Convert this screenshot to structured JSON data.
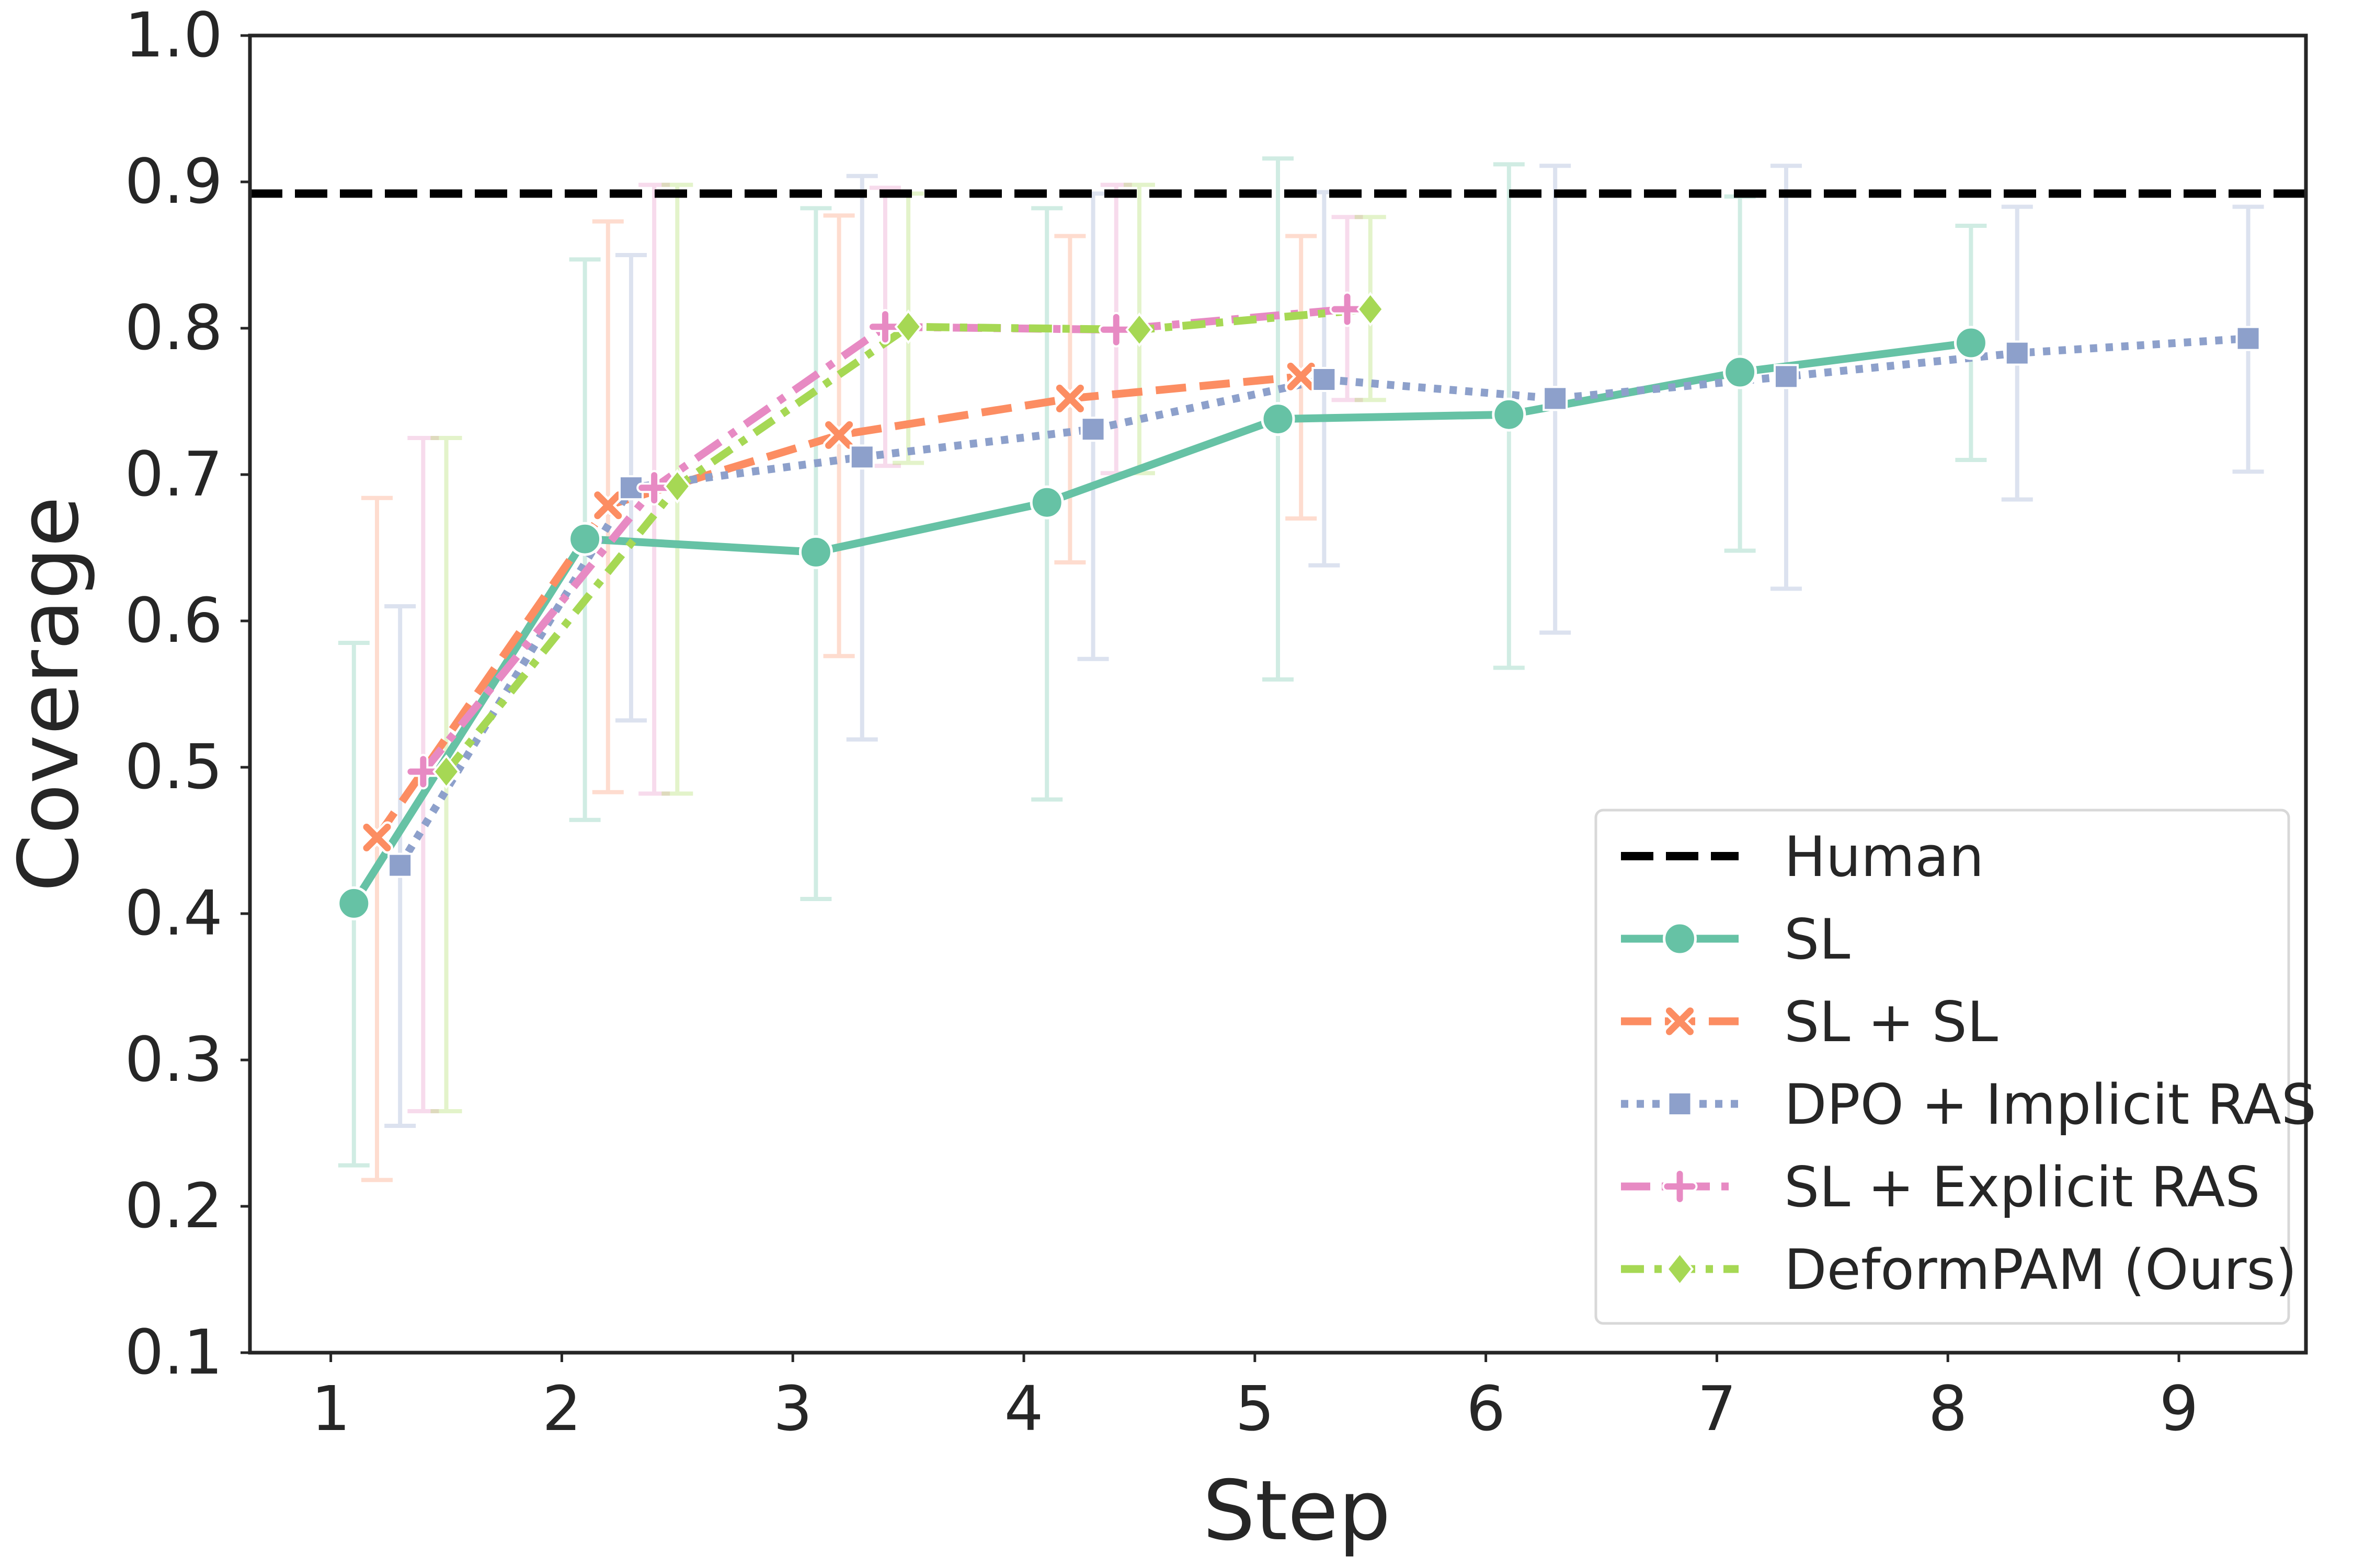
{
  "chart_data": {
    "type": "line",
    "title": "",
    "xlabel": "Step",
    "ylabel": "Coverage",
    "xlim": [
      0.65,
      9.55
    ],
    "ylim": [
      0.1,
      1.0
    ],
    "xticks": [
      1,
      2,
      3,
      4,
      5,
      6,
      7,
      8,
      9
    ],
    "yticks": [
      0.1,
      0.2,
      0.3,
      0.4,
      0.5,
      0.6,
      0.7,
      0.8,
      0.9,
      1.0
    ],
    "ytick_labels": [
      "0.1",
      "0.2",
      "0.3",
      "0.4",
      "0.5",
      "0.6",
      "0.7",
      "0.8",
      "0.9",
      "1.0"
    ],
    "xtick_labels": [
      "1",
      "2",
      "3",
      "4",
      "5",
      "6",
      "7",
      "8",
      "9"
    ],
    "grid": false,
    "legend_position": "bottom-right",
    "reference_line": {
      "name": "Human",
      "y": 0.892,
      "color": "#000000",
      "style": "dashed"
    },
    "series": [
      {
        "name": "SL",
        "color": "#66c2a5",
        "marker": "circle",
        "dash": "solid",
        "x": [
          1.1,
          2.1,
          3.1,
          4.1,
          5.1,
          6.1,
          7.1,
          8.1
        ],
        "y": [
          0.407,
          0.656,
          0.647,
          0.681,
          0.738,
          0.741,
          0.77,
          0.79
        ],
        "err_low": [
          0.228,
          0.464,
          0.41,
          0.478,
          0.56,
          0.568,
          0.648,
          0.71
        ],
        "err_high": [
          0.585,
          0.847,
          0.882,
          0.882,
          0.916,
          0.912,
          0.89,
          0.87
        ]
      },
      {
        "name": "SL + SL",
        "color": "#fc8d62",
        "marker": "x",
        "dash": "dashed",
        "x": [
          1.2,
          2.2,
          3.2,
          4.2,
          5.2
        ],
        "y": [
          0.452,
          0.679,
          0.727,
          0.752,
          0.767
        ],
        "err_low": [
          0.218,
          0.483,
          0.576,
          0.64,
          0.67
        ],
        "err_high": [
          0.684,
          0.873,
          0.877,
          0.863,
          0.863
        ]
      },
      {
        "name": "DPO + Implicit RAS",
        "color": "#8da0cb",
        "marker": "square",
        "dash": "dotted",
        "x": [
          1.3,
          2.3,
          3.3,
          4.3,
          5.3,
          6.3,
          7.3,
          8.3,
          9.3
        ],
        "y": [
          0.433,
          0.691,
          0.712,
          0.731,
          0.765,
          0.752,
          0.767,
          0.783,
          0.793
        ],
        "err_low": [
          0.255,
          0.532,
          0.519,
          0.574,
          0.638,
          0.592,
          0.622,
          0.683,
          0.702
        ],
        "err_high": [
          0.61,
          0.85,
          0.904,
          0.892,
          0.893,
          0.911,
          0.911,
          0.883,
          0.883
        ]
      },
      {
        "name": "SL + Explicit RAS",
        "color": "#e78ac3",
        "marker": "plus",
        "dash": "dashdot",
        "x": [
          1.4,
          2.4,
          3.4,
          4.4,
          5.4
        ],
        "y": [
          0.497,
          0.691,
          0.801,
          0.799,
          0.813
        ],
        "err_low": [
          0.265,
          0.482,
          0.706,
          0.701,
          0.751
        ],
        "err_high": [
          0.725,
          0.898,
          0.896,
          0.898,
          0.876
        ]
      },
      {
        "name": "DeformPAM (Ours)",
        "color": "#a6d854",
        "marker": "diamond",
        "dash": "dashdot2",
        "x": [
          1.5,
          2.5,
          3.5,
          4.5,
          5.5
        ],
        "y": [
          0.497,
          0.692,
          0.801,
          0.799,
          0.813
        ],
        "err_low": [
          0.265,
          0.482,
          0.708,
          0.701,
          0.751
        ],
        "err_high": [
          0.725,
          0.898,
          0.892,
          0.898,
          0.876
        ]
      }
    ]
  },
  "legend": {
    "items": [
      "Human",
      "SL",
      "SL + SL",
      "DPO + Implicit RAS",
      "SL + Explicit RAS",
      "DeformPAM (Ours)"
    ]
  }
}
